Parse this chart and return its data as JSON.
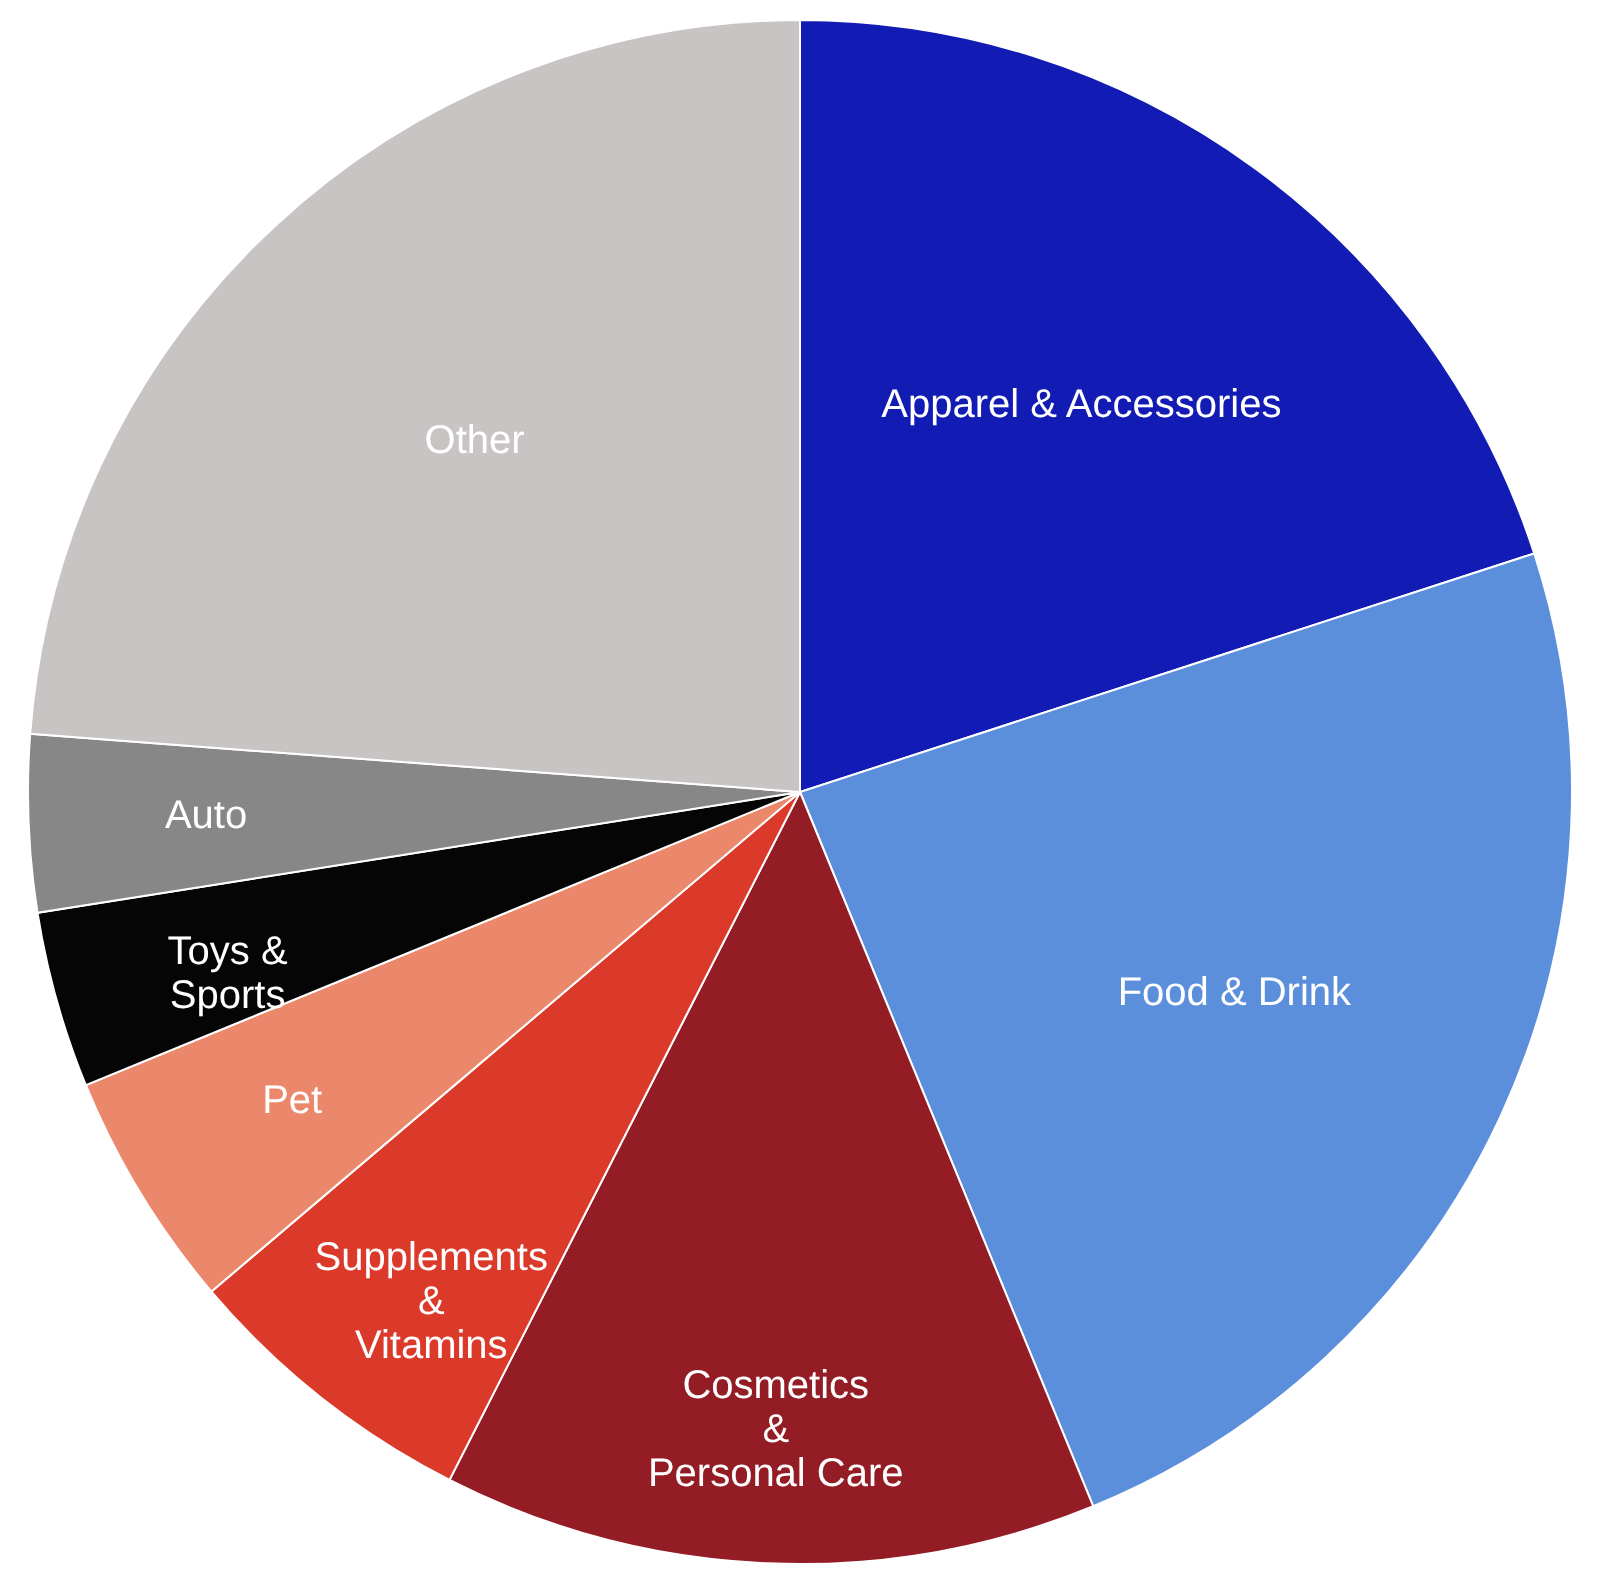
{
  "chart_data": {
    "type": "pie",
    "categories": [
      "Apparel & Accessories",
      "Food & Drink",
      "Cosmetics\n&\nPersonal Care",
      "Supplements\n&\nVitamins",
      "Pet",
      "Toys &\nSports",
      "Auto",
      "Other"
    ],
    "values": [
      20.0,
      23.8,
      13.7,
      6.3,
      5.0,
      3.7,
      3.7,
      23.8
    ],
    "colors": [
      "#121bb3",
      "#5c8fdb",
      "#931c25",
      "#db3a2a",
      "#eb886b",
      "#050505",
      "#878787",
      "#c9c4c4"
    ]
  }
}
